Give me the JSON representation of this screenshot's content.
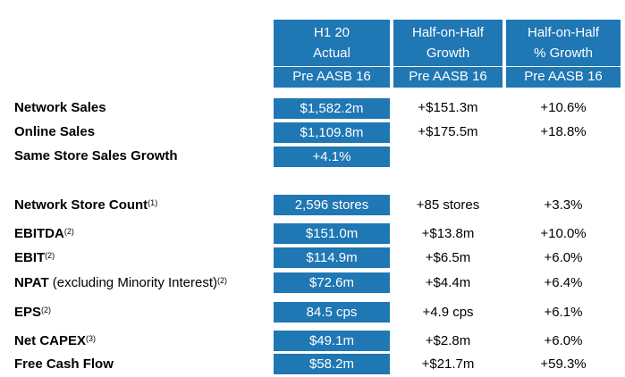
{
  "header": {
    "columns": [
      {
        "line1": "H1 20",
        "line2": "Actual",
        "basis": "Pre AASB 16"
      },
      {
        "line1": "Half-on-Half",
        "line2": "Growth",
        "basis": "Pre AASB 16"
      },
      {
        "line1": "Half-on-Half",
        "line2": "% Growth",
        "basis": "Pre AASB 16"
      }
    ]
  },
  "rows": [
    {
      "label": "Network Sales",
      "actual": "$1,582.2m",
      "growth": "+$151.3m",
      "pct": "+10.6%"
    },
    {
      "label": "Online Sales",
      "actual": "$1,109.8m",
      "growth": "+$175.5m",
      "pct": "+18.8%"
    },
    {
      "label": "Same Store Sales Growth",
      "actual": "+4.1%",
      "growth": "",
      "pct": ""
    },
    {
      "label": "Network Store Count",
      "note": "(1)",
      "actual": "2,596 stores",
      "growth": "+85 stores",
      "pct": "+3.3%"
    },
    {
      "label": "EBITDA",
      "note": "(2)",
      "actual": "$151.0m",
      "growth": "+$13.8m",
      "pct": "+10.0%"
    },
    {
      "label": "EBIT",
      "note": "(2)",
      "actual": "$114.9m",
      "growth": "+$6.5m",
      "pct": "+6.0%"
    },
    {
      "label": "NPAT",
      "sublabel": "(excluding Minority Interest)",
      "note": "(2)",
      "actual": "$72.6m",
      "growth": "+$4.4m",
      "pct": "+6.4%"
    },
    {
      "label": "EPS",
      "note": "(2)",
      "actual": "84.5 cps",
      "growth": "+4.9 cps",
      "pct": "+6.1%"
    },
    {
      "label": "Net CAPEX",
      "note": "(3)",
      "actual": "$49.1m",
      "growth": "+$2.8m",
      "pct": "+6.0%"
    },
    {
      "label": "Free Cash Flow",
      "actual": "$58.2m",
      "growth": "+$21.7m",
      "pct": "+59.3%"
    }
  ]
}
